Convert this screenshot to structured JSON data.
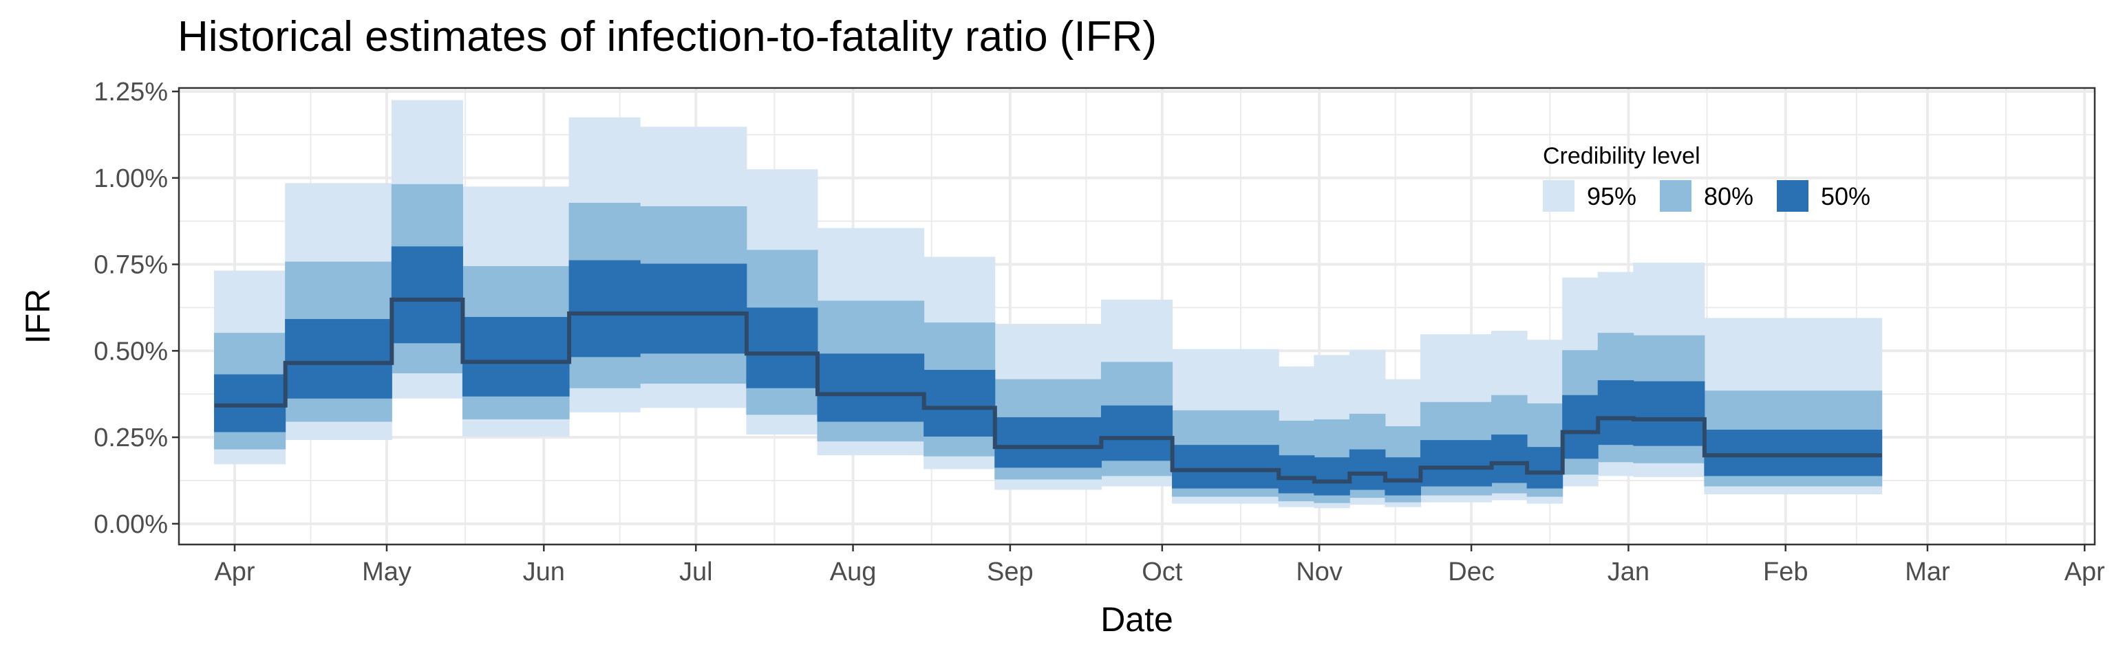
{
  "chart_data": {
    "type": "area",
    "title": "Historical estimates of infection-to-fatality ratio (IFR)",
    "xlabel": "Date",
    "ylabel": "IFR",
    "x_range": [
      "2020-03-21",
      "2021-04-03"
    ],
    "x_ticks": [
      {
        "date": "2020-04-01",
        "label": "Apr"
      },
      {
        "date": "2020-05-01",
        "label": "May"
      },
      {
        "date": "2020-06-01",
        "label": "Jun"
      },
      {
        "date": "2020-07-01",
        "label": "Jul"
      },
      {
        "date": "2020-08-01",
        "label": "Aug"
      },
      {
        "date": "2020-09-01",
        "label": "Sep"
      },
      {
        "date": "2020-10-01",
        "label": "Oct"
      },
      {
        "date": "2020-11-01",
        "label": "Nov"
      },
      {
        "date": "2020-12-01",
        "label": "Dec"
      },
      {
        "date": "2021-01-01",
        "label": "Jan"
      },
      {
        "date": "2021-02-01",
        "label": "Feb"
      },
      {
        "date": "2021-03-01",
        "label": "Mar"
      },
      {
        "date": "2021-04-01",
        "label": "Apr"
      }
    ],
    "ylim": [
      -0.0006,
      0.0126
    ],
    "y_ticks": [
      {
        "value": 0.0,
        "label": "0.00%"
      },
      {
        "value": 0.0025,
        "label": "0.25%"
      },
      {
        "value": 0.005,
        "label": "0.50%"
      },
      {
        "value": 0.0075,
        "label": "0.75%"
      },
      {
        "value": 0.01,
        "label": "1.00%"
      },
      {
        "value": 0.0125,
        "label": "1.25%"
      }
    ],
    "grid": true,
    "legend": {
      "title": "Credibility level",
      "placement": "top-right",
      "items": [
        {
          "label": "95%",
          "color": "#d6e5f4"
        },
        {
          "label": "80%",
          "color": "#8fbcda"
        },
        {
          "label": "50%",
          "color": "#2a71b4"
        }
      ]
    },
    "median_color": "#2e4a68",
    "segments": [
      {
        "start": "2020-03-28",
        "end": "2020-04-11",
        "median": 0.00342,
        "lo50": 0.00265,
        "hi50": 0.00432,
        "lo80": 0.00215,
        "hi80": 0.00552,
        "lo95": 0.00172,
        "hi95": 0.00732
      },
      {
        "start": "2020-04-11",
        "end": "2020-05-02",
        "median": 0.00465,
        "lo50": 0.00362,
        "hi50": 0.00592,
        "lo80": 0.00295,
        "hi80": 0.00758,
        "lo95": 0.00242,
        "hi95": 0.00985
      },
      {
        "start": "2020-05-02",
        "end": "2020-05-16",
        "median": 0.00648,
        "lo50": 0.00522,
        "hi50": 0.00802,
        "lo80": 0.00435,
        "hi80": 0.00982,
        "lo95": 0.00362,
        "hi95": 0.01225
      },
      {
        "start": "2020-05-16",
        "end": "2020-06-06",
        "median": 0.00468,
        "lo50": 0.00368,
        "hi50": 0.00598,
        "lo80": 0.00302,
        "hi80": 0.00745,
        "lo95": 0.00252,
        "hi95": 0.00975
      },
      {
        "start": "2020-06-06",
        "end": "2020-06-20",
        "median": 0.00608,
        "lo50": 0.00482,
        "hi50": 0.00762,
        "lo80": 0.00392,
        "hi80": 0.00928,
        "lo95": 0.00322,
        "hi95": 0.01175
      },
      {
        "start": "2020-06-20",
        "end": "2020-07-11",
        "median": 0.00608,
        "lo50": 0.00492,
        "hi50": 0.00752,
        "lo80": 0.00405,
        "hi80": 0.00918,
        "lo95": 0.00335,
        "hi95": 0.01148
      },
      {
        "start": "2020-07-11",
        "end": "2020-07-25",
        "median": 0.00492,
        "lo50": 0.00392,
        "hi50": 0.00625,
        "lo80": 0.00315,
        "hi80": 0.00792,
        "lo95": 0.00258,
        "hi95": 0.01025
      },
      {
        "start": "2020-07-25",
        "end": "2020-08-15",
        "median": 0.00375,
        "lo50": 0.00295,
        "hi50": 0.00492,
        "lo80": 0.00238,
        "hi80": 0.00645,
        "lo95": 0.00198,
        "hi95": 0.00855
      },
      {
        "start": "2020-08-15",
        "end": "2020-08-29",
        "median": 0.00335,
        "lo50": 0.00252,
        "hi50": 0.00445,
        "lo80": 0.00195,
        "hi80": 0.00582,
        "lo95": 0.00158,
        "hi95": 0.00772
      },
      {
        "start": "2020-08-29",
        "end": "2020-09-19",
        "median": 0.00222,
        "lo50": 0.00162,
        "hi50": 0.00308,
        "lo80": 0.00128,
        "hi80": 0.00418,
        "lo95": 0.00098,
        "hi95": 0.00578
      },
      {
        "start": "2020-09-19",
        "end": "2020-10-03",
        "median": 0.00248,
        "lo50": 0.00182,
        "hi50": 0.00342,
        "lo80": 0.00138,
        "hi80": 0.00468,
        "lo95": 0.00108,
        "hi95": 0.00648
      },
      {
        "start": "2020-10-03",
        "end": "2020-10-24",
        "median": 0.00155,
        "lo50": 0.00102,
        "hi50": 0.00228,
        "lo80": 0.00078,
        "hi80": 0.00328,
        "lo95": 0.00058,
        "hi95": 0.00505
      },
      {
        "start": "2020-10-24",
        "end": "2020-10-31",
        "median": 0.00132,
        "lo50": 0.00088,
        "hi50": 0.00198,
        "lo80": 0.00065,
        "hi80": 0.00298,
        "lo95": 0.00048,
        "hi95": 0.00455
      },
      {
        "start": "2020-10-31",
        "end": "2020-11-07",
        "median": 0.00122,
        "lo50": 0.00082,
        "hi50": 0.00192,
        "lo80": 0.0006,
        "hi80": 0.00302,
        "lo95": 0.00045,
        "hi95": 0.00488
      },
      {
        "start": "2020-11-07",
        "end": "2020-11-14",
        "median": 0.00145,
        "lo50": 0.00098,
        "hi50": 0.00215,
        "lo80": 0.00075,
        "hi80": 0.00318,
        "lo95": 0.00055,
        "hi95": 0.00502
      },
      {
        "start": "2020-11-14",
        "end": "2020-11-21",
        "median": 0.00125,
        "lo50": 0.00082,
        "hi50": 0.00192,
        "lo80": 0.00062,
        "hi80": 0.00282,
        "lo95": 0.00048,
        "hi95": 0.00418
      },
      {
        "start": "2020-11-21",
        "end": "2020-12-05",
        "median": 0.00162,
        "lo50": 0.00108,
        "hi50": 0.00242,
        "lo80": 0.00082,
        "hi80": 0.00352,
        "lo95": 0.00062,
        "hi95": 0.00548
      },
      {
        "start": "2020-12-05",
        "end": "2020-12-12",
        "median": 0.00175,
        "lo50": 0.00118,
        "hi50": 0.00258,
        "lo80": 0.00088,
        "hi80": 0.00372,
        "lo95": 0.00068,
        "hi95": 0.00558
      },
      {
        "start": "2020-12-12",
        "end": "2020-12-19",
        "median": 0.00148,
        "lo50": 0.00102,
        "hi50": 0.00222,
        "lo80": 0.00078,
        "hi80": 0.00348,
        "lo95": 0.00058,
        "hi95": 0.00532
      },
      {
        "start": "2020-12-19",
        "end": "2020-12-26",
        "median": 0.00265,
        "lo50": 0.00188,
        "hi50": 0.00372,
        "lo80": 0.00142,
        "hi80": 0.00502,
        "lo95": 0.00108,
        "hi95": 0.00712
      },
      {
        "start": "2020-12-26",
        "end": "2021-01-02",
        "median": 0.00305,
        "lo50": 0.00228,
        "hi50": 0.00415,
        "lo80": 0.00178,
        "hi80": 0.00552,
        "lo95": 0.00138,
        "hi95": 0.00728
      },
      {
        "start": "2021-01-02",
        "end": "2021-01-16",
        "median": 0.00302,
        "lo50": 0.00225,
        "hi50": 0.00412,
        "lo80": 0.00175,
        "hi80": 0.00545,
        "lo95": 0.00135,
        "hi95": 0.00755
      },
      {
        "start": "2021-01-16",
        "end": "2021-02-20",
        "median": 0.00198,
        "lo50": 0.00138,
        "hi50": 0.00272,
        "lo80": 0.00108,
        "hi80": 0.00385,
        "lo95": 0.00085,
        "hi95": 0.00595
      }
    ]
  }
}
